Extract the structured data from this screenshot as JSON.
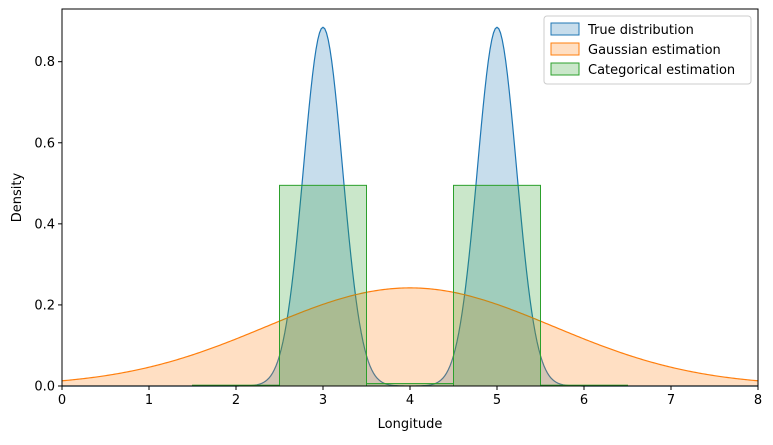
{
  "chart_data": {
    "type": "area",
    "title": "",
    "xlabel": "Longitude",
    "ylabel": "Density",
    "xlim": [
      0,
      8
    ],
    "ylim": [
      0,
      0.93
    ],
    "grid": false,
    "legend_position": "top-right",
    "x_ticks": [
      0,
      1,
      2,
      3,
      4,
      5,
      6,
      7,
      8
    ],
    "x_tick_labels": [
      "0",
      "1",
      "2",
      "3",
      "4",
      "5",
      "6",
      "7",
      "8"
    ],
    "y_ticks": [
      0.0,
      0.2,
      0.4,
      0.6,
      0.8
    ],
    "y_tick_labels": [
      "0.0",
      "0.2",
      "0.4",
      "0.6",
      "0.8"
    ],
    "series": [
      {
        "name": "True distribution",
        "kind": "bimodal-density",
        "color": "#1f77b4",
        "modes": [
          3,
          5
        ],
        "mode_std": 0.225,
        "peak_density": 0.885
      },
      {
        "name": "Gaussian estimation",
        "kind": "normal-density",
        "color": "#ff7f0e",
        "mean": 4.0,
        "std": 1.65,
        "peak_density": 0.242
      },
      {
        "name": "Categorical estimation",
        "kind": "step",
        "color": "#2ca02c",
        "bins": [
          {
            "x0": 1.5,
            "x1": 2.5,
            "y": 0.002
          },
          {
            "x0": 2.5,
            "x1": 3.5,
            "y": 0.495
          },
          {
            "x0": 3.5,
            "x1": 4.5,
            "y": 0.006
          },
          {
            "x0": 4.5,
            "x1": 5.5,
            "y": 0.495
          },
          {
            "x0": 5.5,
            "x1": 6.5,
            "y": 0.002
          }
        ]
      }
    ]
  }
}
